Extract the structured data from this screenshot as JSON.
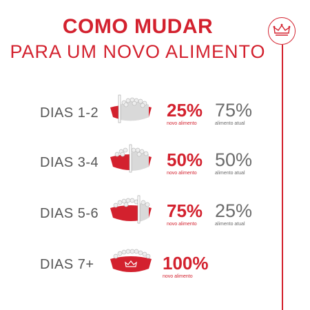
{
  "header": {
    "title": "COMO MUDAR",
    "subtitle": "PARA UM NOVO ALIMENTO"
  },
  "brand": {
    "icon": "crown-icon",
    "color": "#d3212e"
  },
  "colors": {
    "accent": "#d3212e",
    "grey": "#6b6b6b",
    "kibble": "#e8e8e8"
  },
  "steps": [
    {
      "days": "DIAS 1-2",
      "new_pct": "25%",
      "new_label": "novo alimento",
      "old_pct": "75%",
      "old_label": "alimento atual",
      "new_share": 0.25
    },
    {
      "days": "DIAS 3-4",
      "new_pct": "50%",
      "new_label": "novo alimento",
      "old_pct": "50%",
      "old_label": "alimento atual",
      "new_share": 0.5
    },
    {
      "days": "DIAS 5-6",
      "new_pct": "75%",
      "new_label": "novo alimento",
      "old_pct": "25%",
      "old_label": "alimento atual",
      "new_share": 0.75
    },
    {
      "days": "DIAS 7+",
      "new_pct": "100%",
      "new_label": "novo alimento",
      "new_share": 1.0
    }
  ]
}
